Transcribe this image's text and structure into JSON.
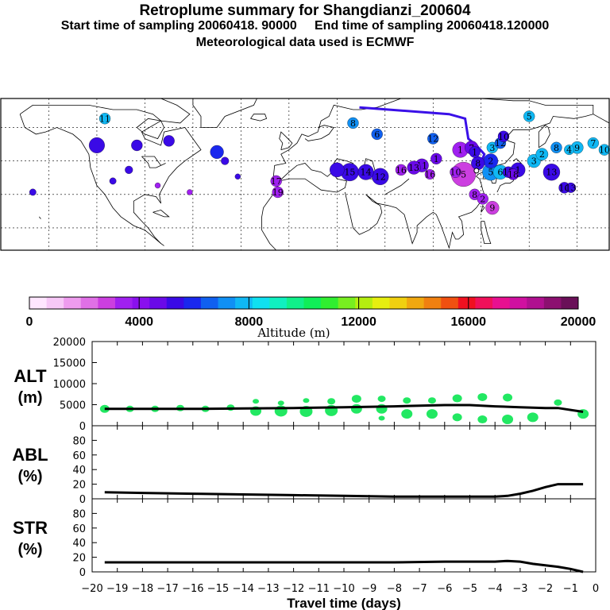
{
  "header": {
    "title": "Retroplume summary for Shangdianzi_200604",
    "subtitle": "Start time of sampling 20060418. 90000     End time of sampling 20060418.120000",
    "met_line": "Meteorological data used is ECMWF"
  },
  "colorbar": {
    "label": "Altitude (m)",
    "ticks": [
      "0",
      "4000",
      "8000",
      "12000",
      "16000",
      "20000"
    ],
    "colors": [
      "#ffe6ff",
      "#f7c8f7",
      "#ee9cee",
      "#e070e6",
      "#cc3fe0",
      "#a020f0",
      "#8a10ee",
      "#6a0ae8",
      "#3a0ae6",
      "#1a28ee",
      "#1060f0",
      "#1090f4",
      "#10b8f4",
      "#10e0f0",
      "#10f0c0",
      "#10f08a",
      "#10ee58",
      "#30ee30",
      "#78ee20",
      "#b4ee10",
      "#e6ee10",
      "#f0d010",
      "#f0a810",
      "#f08010",
      "#f05010",
      "#f01020",
      "#f0105a",
      "#e81090",
      "#d010a0",
      "#b01090",
      "#8c1070",
      "#6a1058"
    ]
  },
  "chart_data": [
    {
      "type": "scatter",
      "panel": "ALT",
      "ylabel": "ALT (m)",
      "ylabel_lines": [
        "ALT",
        "(m)"
      ],
      "ylim": [
        0,
        20000
      ],
      "yticks": [
        "0",
        "5000",
        "10000",
        "15000",
        "20000"
      ],
      "xlim": [
        -20,
        0
      ],
      "series": [
        {
          "name": "mean altitude",
          "style": "line",
          "color": "#000000",
          "x": [
            -19.5,
            -18,
            -16,
            -14,
            -12,
            -10,
            -8,
            -6,
            -5,
            -4,
            -3,
            -2,
            -1.5,
            -0.5
          ],
          "y": [
            4000,
            4000,
            4000,
            4100,
            4200,
            4400,
            4600,
            4900,
            4900,
            4600,
            4400,
            4200,
            4200,
            3300
          ]
        },
        {
          "name": "plume altitude clusters",
          "style": "points",
          "color": "#22e862",
          "x": [
            -19.5,
            -18.5,
            -17.5,
            -16.5,
            -15.5,
            -14.5,
            -13.5,
            -13.5,
            -12.5,
            -12.5,
            -11.5,
            -11.5,
            -10.5,
            -10.5,
            -9.5,
            -9.5,
            -8.5,
            -8.5,
            -8.5,
            -7.5,
            -7.5,
            -6.5,
            -6.5,
            -5.5,
            -5.5,
            -4.5,
            -4.5,
            -3.5,
            -3.5,
            -2.5,
            -1.5,
            -0.5
          ],
          "y": [
            4000,
            4000,
            4000,
            4200,
            4000,
            4300,
            5800,
            3500,
            5400,
            3500,
            6000,
            3400,
            5800,
            3600,
            6400,
            4000,
            6400,
            4000,
            1800,
            6000,
            2800,
            6000,
            2800,
            6500,
            2000,
            6800,
            1500,
            6700,
            1500,
            2000,
            5500,
            2800
          ],
          "size": [
            5,
            4,
            4,
            4,
            4,
            4,
            3,
            6,
            3,
            7,
            3,
            7,
            4,
            7,
            5,
            6,
            4,
            6,
            3,
            4,
            6,
            4,
            6,
            5,
            5,
            5,
            5,
            5,
            6,
            6,
            4,
            6
          ]
        }
      ]
    },
    {
      "type": "line",
      "panel": "ABL",
      "ylabel": "ABL (%)",
      "ylabel_lines": [
        "ABL",
        "(%)"
      ],
      "ylim": [
        0,
        100
      ],
      "yticks": [
        "0",
        "20",
        "40",
        "60",
        "80"
      ],
      "x": [
        -19.5,
        -18,
        -16,
        -14,
        -12,
        -10,
        -8,
        -6,
        -5,
        -4,
        -3.5,
        -3,
        -2.5,
        -2,
        -1.5,
        -1,
        -0.5
      ],
      "y": [
        9,
        8,
        7,
        6,
        5,
        4,
        3,
        3,
        3,
        3,
        4,
        7,
        11,
        16,
        20,
        20,
        20
      ]
    },
    {
      "type": "line",
      "panel": "STR",
      "ylabel": "STR (%)",
      "ylabel_lines": [
        "STR",
        "(%)"
      ],
      "ylim": [
        0,
        100
      ],
      "yticks": [
        "0",
        "20",
        "40",
        "60",
        "80"
      ],
      "x": [
        -19.5,
        -18,
        -16,
        -14,
        -12,
        -10,
        -8,
        -6,
        -5,
        -4,
        -3.5,
        -3,
        -2.5,
        -2,
        -1.5,
        -1,
        -0.5
      ],
      "y": [
        13,
        13,
        13,
        13,
        13,
        13,
        13,
        14,
        14,
        14,
        15,
        14,
        11,
        9,
        7,
        4,
        0
      ],
      "xlabel": "Travel time (days)",
      "xticks": [
        "-20",
        "-19",
        "-18",
        "-17",
        "-16",
        "-15",
        "-14",
        "-13",
        "-12",
        "-11",
        "-10",
        "-9",
        "-8",
        "-7",
        "-6",
        "-5",
        "-4",
        "-3",
        "-2",
        "-1",
        "0"
      ]
    }
  ],
  "map": {
    "description_free": true,
    "plume_points": [
      {
        "lon": -115,
        "lat": 64,
        "label": "11",
        "color": "#10b8f4",
        "r": 1.0
      },
      {
        "lon": 40,
        "lat": 62,
        "label": "8",
        "color": "#1090f4",
        "r": 1.0
      },
      {
        "lon": 55,
        "lat": 57,
        "label": "6",
        "color": "#1060f0",
        "r": 1.0
      },
      {
        "lon": 90,
        "lat": 55,
        "label": "12",
        "color": "#1060f0",
        "r": 1.0
      },
      {
        "lon": 150,
        "lat": 65,
        "label": "5",
        "color": "#10b8f4",
        "r": 1.0
      },
      {
        "lon": 107,
        "lat": 50,
        "label": "1",
        "color": "#a020f0",
        "r": 1.4
      },
      {
        "lon": 114,
        "lat": 51,
        "label": "7",
        "color": "#6a0ae8",
        "r": 1.2
      },
      {
        "lon": 116,
        "lat": 49,
        "label": "1",
        "color": "#3a0ae6",
        "r": 1.0
      },
      {
        "lon": 127,
        "lat": 51,
        "label": "3",
        "color": "#10b8f4",
        "r": 1.0
      },
      {
        "lon": 132,
        "lat": 53,
        "label": "12",
        "color": "#1060f0",
        "r": 1.0
      },
      {
        "lon": 134,
        "lat": 56,
        "label": "10",
        "color": "#3a0ae6",
        "r": 1.0
      },
      {
        "lon": 126,
        "lat": 45,
        "label": "2",
        "color": "#1a28ee",
        "r": 1.3
      },
      {
        "lon": 118,
        "lat": 44,
        "label": "8",
        "color": "#3a0ae6",
        "r": 1.2
      },
      {
        "lon": 109,
        "lat": 39,
        "label": "5",
        "color": "#cc3fe0",
        "r": 2.2
      },
      {
        "lon": 126,
        "lat": 40,
        "label": "5",
        "color": "#1090f4",
        "r": 1.5
      },
      {
        "lon": 132,
        "lat": 40,
        "label": "6",
        "color": "#10b8f4",
        "r": 1.3
      },
      {
        "lon": 137,
        "lat": 40,
        "label": "17",
        "color": "#3a0ae6",
        "r": 1.0
      },
      {
        "lon": 140,
        "lat": 39,
        "label": "18",
        "color": "#6a0ae8",
        "r": 1.0
      },
      {
        "lon": 143,
        "lat": 41,
        "label": "1",
        "color": "#3a0ae6",
        "r": 1.3
      },
      {
        "lon": 153,
        "lat": 45,
        "label": "3",
        "color": "#10b8f4",
        "r": 1.2
      },
      {
        "lon": 158,
        "lat": 48,
        "label": "2",
        "color": "#10b8f4",
        "r": 1.1
      },
      {
        "lon": 167,
        "lat": 51,
        "label": "8",
        "color": "#1090f4",
        "r": 1.0
      },
      {
        "lon": 175,
        "lat": 50,
        "label": "4",
        "color": "#10b8f4",
        "r": 0.9
      },
      {
        "lon": 180,
        "lat": 51,
        "label": "9",
        "color": "#10b8f4",
        "r": 1.1
      },
      {
        "lon": 190,
        "lat": 53,
        "label": "7",
        "color": "#10b8f4",
        "r": 1.0
      },
      {
        "lon": 197,
        "lat": 50,
        "label": "10",
        "color": "#10b8f4",
        "r": 1.0
      },
      {
        "lon": 164,
        "lat": 40,
        "label": "13",
        "color": "#3a0ae6",
        "r": 1.5
      },
      {
        "lon": 172,
        "lat": 33,
        "label": "16",
        "color": "#3a0ae6",
        "r": 1.0
      },
      {
        "lon": 176,
        "lat": 33,
        "label": "13",
        "color": "#3a0ae6",
        "r": 0.9
      },
      {
        "lon": 116,
        "lat": 30,
        "label": "8",
        "color": "#a020f0",
        "r": 1.0
      },
      {
        "lon": 121,
        "lat": 28,
        "label": "2",
        "color": "#a020f0",
        "r": 1.0
      },
      {
        "lon": 127,
        "lat": 24,
        "label": "9",
        "color": "#cc3fe0",
        "r": 1.2
      },
      {
        "lon": 104,
        "lat": 40,
        "label": "10",
        "color": "#a020f0",
        "r": 1.0
      },
      {
        "lon": 92,
        "lat": 46,
        "label": "1",
        "color": "#6a0ae8",
        "r": 1.0
      },
      {
        "lon": 83,
        "lat": 43,
        "label": "11",
        "color": "#6a0ae8",
        "r": 1.2
      },
      {
        "lon": 78,
        "lat": 42,
        "label": "13",
        "color": "#6a0ae8",
        "r": 1.2
      },
      {
        "lon": 70,
        "lat": 41,
        "label": "16",
        "color": "#a020f0",
        "r": 1.0
      },
      {
        "lon": 88,
        "lat": 39,
        "label": "16",
        "color": "#a020f0",
        "r": 0.9
      },
      {
        "lon": 38,
        "lat": 40,
        "label": "15",
        "color": "#3a0ae6",
        "r": 1.6
      },
      {
        "lon": 48,
        "lat": 40,
        "label": "14",
        "color": "#3a0ae6",
        "r": 1.4
      },
      {
        "lon": 57,
        "lat": 38,
        "label": "12",
        "color": "#3a0ae6",
        "r": 1.5
      },
      {
        "lon": 30,
        "lat": 41,
        "label": "",
        "color": "#3a0ae6",
        "r": 1.3
      },
      {
        "lon": -8,
        "lat": 36,
        "label": "17",
        "color": "#a020f0",
        "r": 1.0
      },
      {
        "lon": -7,
        "lat": 31,
        "label": "19",
        "color": "#a020f0",
        "r": 1.0
      },
      {
        "lon": -95,
        "lat": 52,
        "label": "",
        "color": "#3a0ae6",
        "r": 1.0
      },
      {
        "lon": -120,
        "lat": 52,
        "label": "",
        "color": "#3a0ae6",
        "r": 1.4
      },
      {
        "lon": -75,
        "lat": 54,
        "label": "",
        "color": "#3a0ae6",
        "r": 1.0
      },
      {
        "lon": -45,
        "lat": 49,
        "label": "",
        "color": "#1a28ee",
        "r": 1.2
      },
      {
        "lon": -40,
        "lat": 45,
        "label": "",
        "color": "#3a0ae6",
        "r": 0.7
      },
      {
        "lon": -100,
        "lat": 41,
        "label": "",
        "color": "#3a0ae6",
        "r": 0.7
      },
      {
        "lon": -110,
        "lat": 36,
        "label": "",
        "color": "#3a0ae6",
        "r": 0.6
      },
      {
        "lon": -160,
        "lat": 31,
        "label": "",
        "color": "#3a0ae6",
        "r": 0.6
      },
      {
        "lon": -82,
        "lat": 34,
        "label": "",
        "color": "#a020f0",
        "r": 0.5
      },
      {
        "lon": -62,
        "lat": 31,
        "label": "",
        "color": "#a020f0",
        "r": 0.5
      },
      {
        "lon": -32,
        "lat": 38,
        "label": "",
        "color": "#3a0ae6",
        "r": 0.5
      }
    ],
    "trajectory": [
      {
        "lon": 44,
        "lat": 69
      },
      {
        "lon": 100,
        "lat": 66
      },
      {
        "lon": 110,
        "lat": 64
      },
      {
        "lon": 112,
        "lat": 55
      },
      {
        "lon": 117,
        "lat": 52
      },
      {
        "lon": 122,
        "lat": 48
      },
      {
        "lon": 118,
        "lat": 41
      }
    ],
    "station": {
      "lon": 117.1,
      "lat": 40.65
    }
  }
}
